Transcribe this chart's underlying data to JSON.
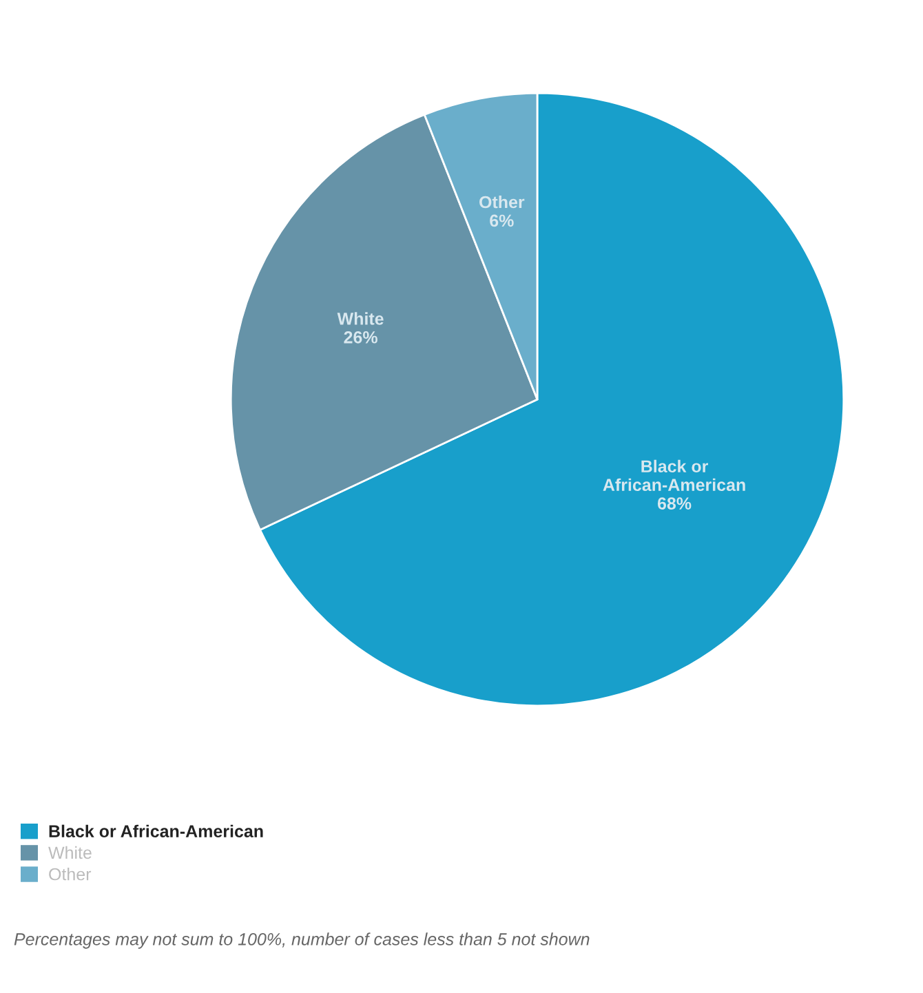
{
  "chart_data": {
    "type": "pie",
    "categories": [
      "Black or African-American",
      "White",
      "Other"
    ],
    "values": [
      68,
      26,
      6
    ],
    "colors": [
      "#189fcb",
      "#6693a8",
      "#6aaecb"
    ],
    "value_labels": [
      "68%",
      "26%",
      "6%"
    ],
    "legend": "bottom left",
    "annotations": [
      "Percentages may not sum to 100%, number of cases less than 5 not shown"
    ]
  }
}
